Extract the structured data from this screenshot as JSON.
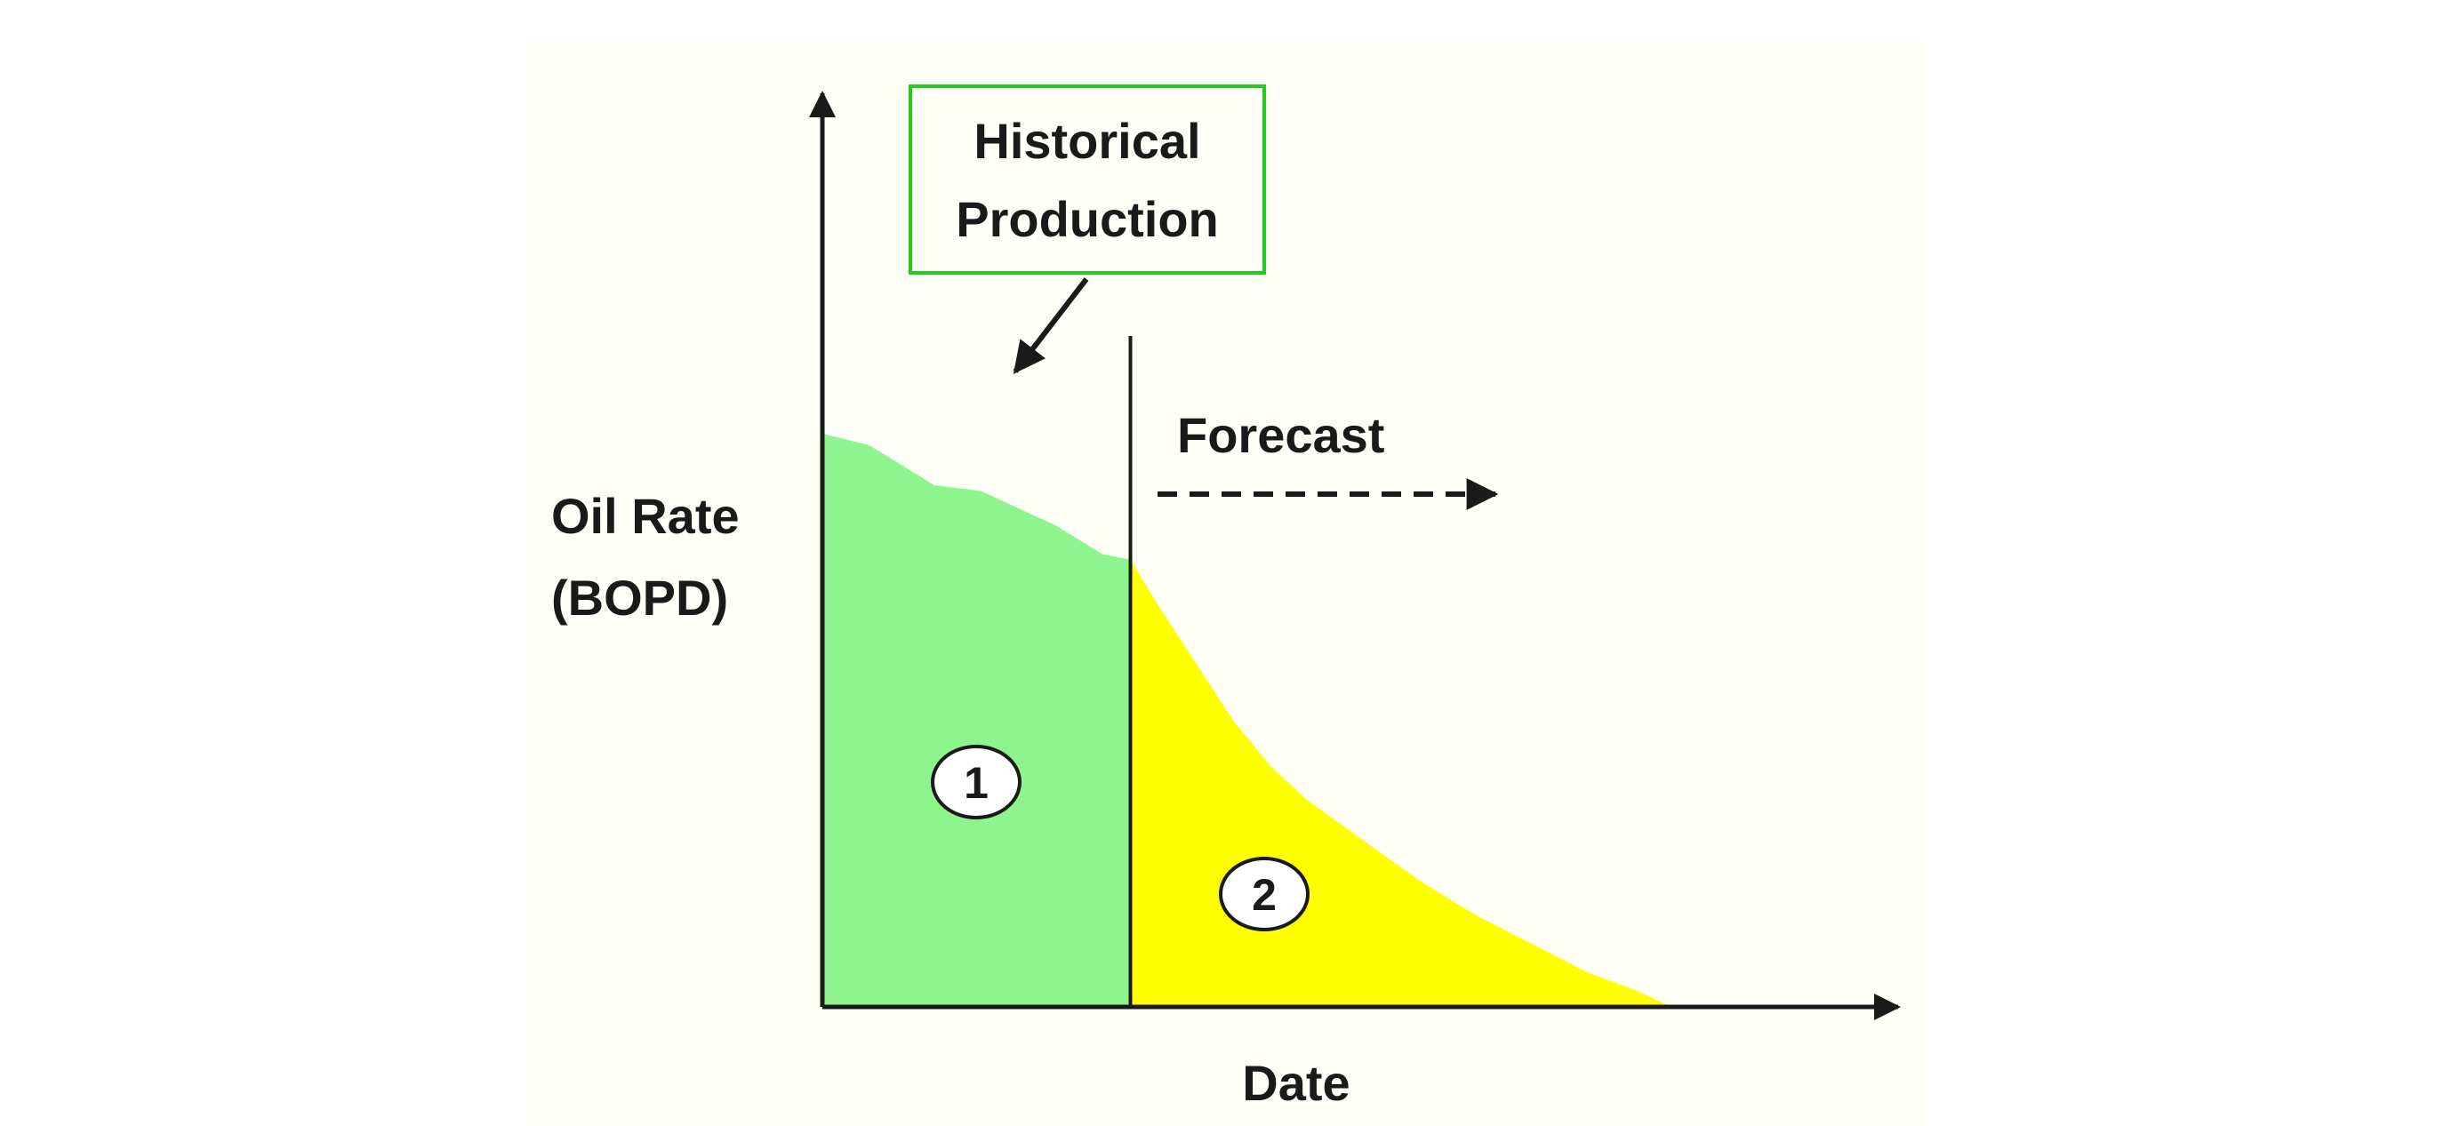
{
  "chart_data": {
    "type": "area",
    "title": "",
    "xlabel": "Date",
    "ylabel_lines": [
      "Oil Rate",
      "(BOPD)"
    ],
    "grid": false,
    "legend": "none",
    "x_range": [
      0,
      100
    ],
    "y_range": [
      0,
      100
    ],
    "series": [
      {
        "key": "historical",
        "color": "#8ef58e",
        "x": [
          0,
          5,
          12,
          17,
          25,
          30,
          33
        ],
        "y": [
          100,
          98,
          91,
          90,
          84,
          79,
          78
        ]
      },
      {
        "key": "forecast",
        "color": "#ffff00",
        "x": [
          33,
          36,
          40,
          44,
          48,
          52,
          58,
          64,
          70,
          76,
          82,
          87,
          91
        ],
        "y": [
          78,
          70,
          60,
          50,
          42,
          36,
          29,
          22,
          16,
          11,
          6,
          3,
          0
        ]
      }
    ],
    "annotations": {
      "historical_box": {
        "lines": [
          "Historical",
          "Production"
        ],
        "border_color": "#22cc22"
      },
      "forecast_label": "Forecast",
      "region_1": "1",
      "region_2": "2"
    }
  }
}
